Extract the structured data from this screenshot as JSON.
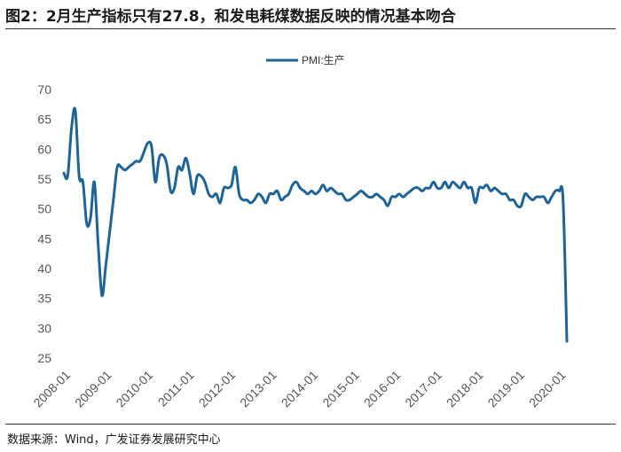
{
  "figure": {
    "title": "图2：2月生产指标只有27.8，和发电耗煤数据反映的情况基本吻合",
    "source": "数据来源：Wind，广发证券发展研究中心"
  },
  "colors": {
    "series": "#1f6496",
    "axis_text": "#555555",
    "rule": "#333333"
  },
  "chart_data": {
    "type": "line",
    "title": "",
    "xlabel": "",
    "ylabel": "",
    "ylim": [
      25,
      70
    ],
    "yticks": [
      25,
      30,
      35,
      40,
      45,
      50,
      55,
      60,
      65,
      70
    ],
    "xticks": [
      "2008-01",
      "2009-01",
      "2010-01",
      "2011-01",
      "2012-01",
      "2013-01",
      "2014-01",
      "2015-01",
      "2016-01",
      "2017-01",
      "2018-01",
      "2019-01",
      "2020-01"
    ],
    "grid": false,
    "legend": "top-center",
    "series": [
      {
        "name": "PMI:生产",
        "values": [
          56.0,
          55.5,
          63.5,
          66.5,
          55.5,
          54.5,
          47.5,
          48.5,
          54.5,
          44.0,
          35.5,
          40.5,
          46.0,
          51.5,
          57.0,
          57.0,
          56.5,
          57.0,
          57.5,
          58.0,
          58.0,
          59.5,
          61.0,
          60.5,
          54.5,
          58.5,
          59.0,
          57.5,
          53.0,
          53.5,
          57.0,
          56.5,
          58.5,
          56.0,
          52.5,
          55.5,
          55.5,
          54.5,
          52.5,
          52.0,
          52.5,
          51.0,
          53.5,
          53.5,
          54.0,
          57.0,
          52.5,
          51.5,
          51.5,
          51.0,
          51.5,
          52.5,
          52.0,
          51.0,
          52.5,
          52.5,
          53.0,
          51.5,
          52.0,
          52.5,
          54.0,
          54.5,
          53.5,
          53.0,
          52.5,
          53.0,
          52.5,
          53.0,
          54.0,
          53.0,
          53.5,
          53.0,
          52.5,
          52.5,
          51.5,
          51.5,
          52.0,
          52.5,
          53.0,
          52.5,
          52.0,
          52.0,
          52.5,
          52.0,
          51.5,
          50.5,
          52.0,
          52.0,
          52.5,
          52.0,
          52.5,
          53.0,
          53.5,
          53.5,
          53.0,
          53.5,
          53.5,
          54.5,
          53.5,
          53.5,
          54.5,
          53.5,
          54.5,
          54.0,
          53.5,
          54.5,
          53.5,
          53.5,
          51.0,
          53.5,
          53.5,
          54.0,
          53.0,
          53.5,
          53.0,
          52.5,
          52.5,
          51.5,
          51.5,
          50.5,
          50.5,
          52.5,
          52.0,
          51.5,
          52.0,
          52.0,
          52.0,
          51.0,
          52.0,
          53.0,
          53.0,
          51.5,
          27.8
        ]
      }
    ]
  }
}
